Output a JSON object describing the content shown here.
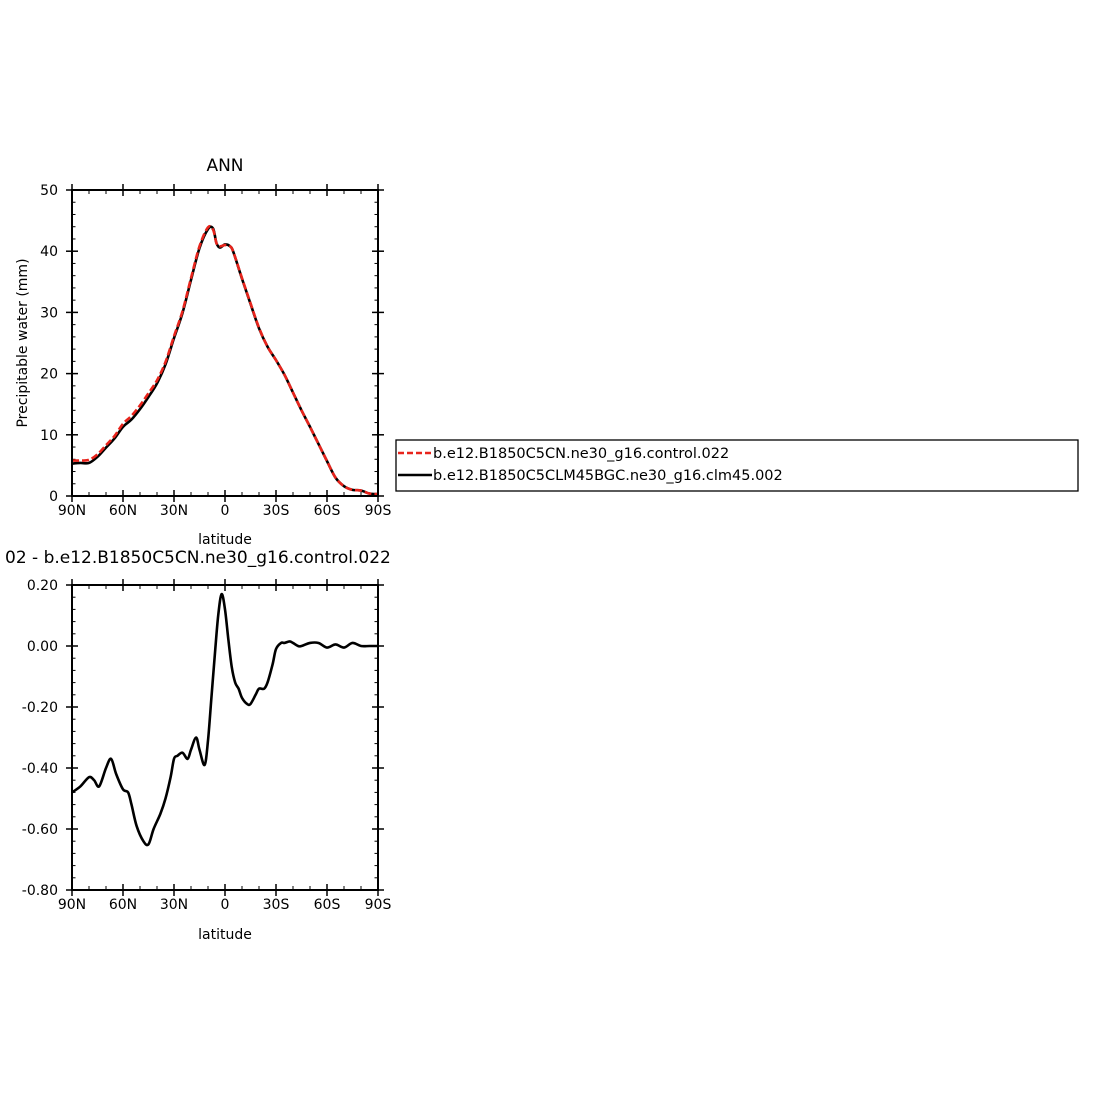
{
  "chart_data": [
    {
      "type": "line",
      "title": "ANN",
      "xlabel": "latitude",
      "ylabel": "Precipitable water (mm)",
      "xlim": [
        90,
        -90
      ],
      "ylim": [
        0,
        50
      ],
      "x_tick_values": [
        90,
        60,
        30,
        0,
        -30,
        -60,
        -90
      ],
      "x_tick_labels": [
        "90N",
        "60N",
        "30N",
        "0",
        "30S",
        "60S",
        "90S"
      ],
      "y_tick_values": [
        0,
        10,
        20,
        30,
        40,
        50
      ],
      "y_tick_labels": [
        "0",
        "10",
        "20",
        "30",
        "40",
        "50"
      ],
      "grid": false,
      "legend_position": "right",
      "series": [
        {
          "name": "b.e12.B1850C5CN.ne30_g16.control.022",
          "color": "#e8241c",
          "dash": "dashed",
          "x": [
            90,
            85,
            80,
            75,
            70,
            65,
            60,
            55,
            50,
            45,
            40,
            35,
            30,
            25,
            20,
            15,
            10,
            7,
            5,
            3,
            0,
            -3,
            -5,
            -10,
            -15,
            -20,
            -25,
            -30,
            -35,
            -40,
            -45,
            -50,
            -55,
            -60,
            -65,
            -70,
            -75,
            -80,
            -85,
            -90
          ],
          "y": [
            5.8,
            5.8,
            5.9,
            6.8,
            8.3,
            9.8,
            11.8,
            13.1,
            14.8,
            16.8,
            18.9,
            21.9,
            26.1,
            30.2,
            35.6,
            40.8,
            43.9,
            43.5,
            41.3,
            40.8,
            41.0,
            40.8,
            39.8,
            35.6,
            31.5,
            27.5,
            24.4,
            22.2,
            19.8,
            16.9,
            14.0,
            11.3,
            8.5,
            5.7,
            3.0,
            1.6,
            1.0,
            0.9,
            0.4,
            0.3
          ]
        },
        {
          "name": "b.e12.B1850C5CLM45BGC.ne30_g16.clm45.002",
          "color": "#000000",
          "dash": "solid",
          "x": [
            90,
            85,
            80,
            75,
            70,
            65,
            60,
            55,
            50,
            45,
            40,
            35,
            30,
            25,
            20,
            15,
            10,
            7,
            5,
            3,
            0,
            -3,
            -5,
            -10,
            -15,
            -20,
            -25,
            -30,
            -35,
            -40,
            -45,
            -50,
            -55,
            -60,
            -65,
            -70,
            -75,
            -80,
            -85,
            -90
          ],
          "y": [
            5.3,
            5.4,
            5.4,
            6.4,
            7.9,
            9.4,
            11.3,
            12.5,
            14.2,
            16.2,
            18.4,
            21.5,
            25.8,
            29.9,
            35.3,
            40.5,
            43.6,
            43.7,
            41.3,
            40.6,
            41.1,
            40.8,
            39.8,
            35.5,
            31.4,
            27.4,
            24.4,
            22.2,
            19.8,
            16.9,
            14.0,
            11.3,
            8.5,
            5.7,
            3.0,
            1.6,
            1.0,
            0.9,
            0.4,
            0.3
          ]
        }
      ]
    },
    {
      "type": "line",
      "title": "02 - b.e12.B1850C5CN.ne30_g16.control.022",
      "xlabel": "latitude",
      "ylabel": "",
      "xlim": [
        90,
        -90
      ],
      "ylim": [
        -0.8,
        0.2
      ],
      "x_tick_values": [
        90,
        60,
        30,
        0,
        -30,
        -60,
        -90
      ],
      "x_tick_labels": [
        "90N",
        "60N",
        "30N",
        "0",
        "30S",
        "60S",
        "90S"
      ],
      "y_tick_values": [
        0.2,
        0.0,
        -0.2,
        -0.4,
        -0.6,
        -0.8
      ],
      "y_tick_labels": [
        "0.20",
        "0.00",
        "-0.20",
        "-0.40",
        "-0.60",
        "-0.80"
      ],
      "grid": false,
      "series": [
        {
          "color": "#000000",
          "x": [
            90,
            85,
            80,
            77,
            74,
            70,
            67,
            64,
            60,
            57,
            55,
            52,
            48,
            45,
            42,
            38,
            35,
            32,
            30,
            28,
            25,
            22,
            20,
            17,
            15,
            12,
            10,
            8,
            6,
            4,
            2,
            0,
            -2,
            -4,
            -6,
            -8,
            -10,
            -13,
            -15,
            -18,
            -20,
            -23,
            -25,
            -28,
            -30,
            -33,
            -35,
            -38,
            -40,
            -43,
            -45,
            -50,
            -55,
            -60,
            -65,
            -70,
            -75,
            -80,
            -85,
            -90
          ],
          "y": [
            -0.48,
            -0.46,
            -0.43,
            -0.44,
            -0.46,
            -0.4,
            -0.37,
            -0.42,
            -0.47,
            -0.48,
            -0.52,
            -0.59,
            -0.64,
            -0.65,
            -0.6,
            -0.55,
            -0.5,
            -0.43,
            -0.37,
            -0.36,
            -0.35,
            -0.37,
            -0.34,
            -0.3,
            -0.34,
            -0.39,
            -0.31,
            -0.17,
            -0.03,
            0.1,
            0.17,
            0.12,
            0.02,
            -0.07,
            -0.12,
            -0.14,
            -0.17,
            -0.19,
            -0.19,
            -0.16,
            -0.14,
            -0.14,
            -0.12,
            -0.06,
            -0.01,
            0.01,
            0.01,
            0.015,
            0.01,
            0.0,
            0.0,
            0.01,
            0.01,
            -0.005,
            0.005,
            -0.005,
            0.01,
            0.0,
            0.0,
            0.0
          ]
        }
      ]
    }
  ]
}
